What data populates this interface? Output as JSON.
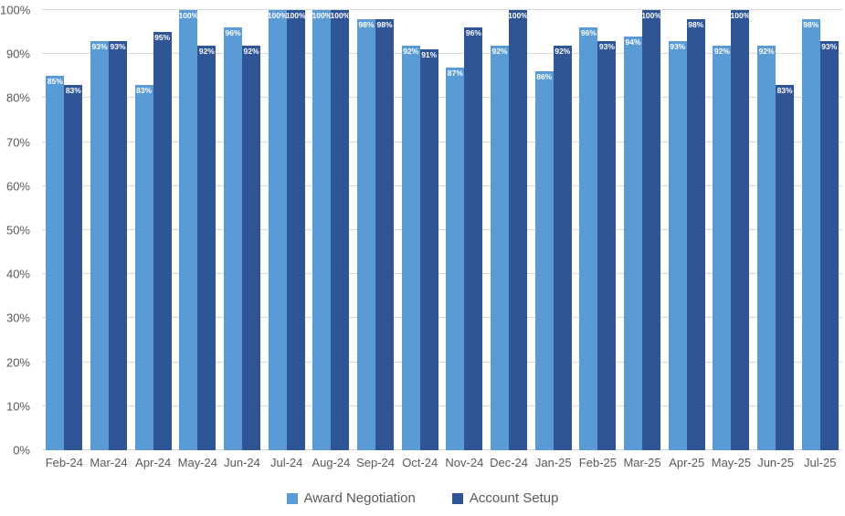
{
  "chart_data": {
    "type": "bar",
    "title": "",
    "xlabel": "",
    "ylabel": "",
    "ylim": [
      0,
      100
    ],
    "grid": true,
    "legend_position": "bottom",
    "y_ticks": [
      "0%",
      "10%",
      "20%",
      "30%",
      "40%",
      "50%",
      "60%",
      "70%",
      "80%",
      "90%",
      "100%"
    ],
    "categories": [
      "Feb-24",
      "Mar-24",
      "Apr-24",
      "May-24",
      "Jun-24",
      "Jul-24",
      "Aug-24",
      "Sep-24",
      "Oct-24",
      "Nov-24",
      "Dec-24",
      "Jan-25",
      "Feb-25",
      "Mar-25",
      "Apr-25",
      "May-25",
      "Jun-25",
      "Jul-25"
    ],
    "series": [
      {
        "name": "Award Negotiation",
        "color": "#5B9BD5",
        "values": [
          85,
          93,
          83,
          100,
          96,
          100,
          100,
          98,
          92,
          87,
          92,
          86,
          96,
          94,
          93,
          92,
          92,
          98
        ],
        "labels": [
          "85%",
          "93%",
          "83%",
          "100%",
          "96%",
          "100%",
          "100%",
          "98%",
          "92%",
          "87%",
          "92%",
          "86%",
          "96%",
          "94%",
          "93%",
          "92%",
          "92%",
          "98%"
        ]
      },
      {
        "name": "Account Setup",
        "color": "#2F5597",
        "values": [
          83,
          93,
          95,
          92,
          92,
          100,
          100,
          98,
          91,
          96,
          100,
          92,
          93,
          100,
          98,
          100,
          83,
          93
        ],
        "labels": [
          "83%",
          "93%",
          "95%",
          "92%",
          "92%",
          "100%",
          "100%",
          "98%",
          "91%",
          "96%",
          "100%",
          "92%",
          "93%",
          "100%",
          "98%",
          "100%",
          "83%",
          "93%"
        ]
      }
    ],
    "colors": {
      "gridline": "#d9d9d9",
      "axis_text": "#595959",
      "data_label": "#ffffff",
      "background": "#ffffff"
    }
  }
}
